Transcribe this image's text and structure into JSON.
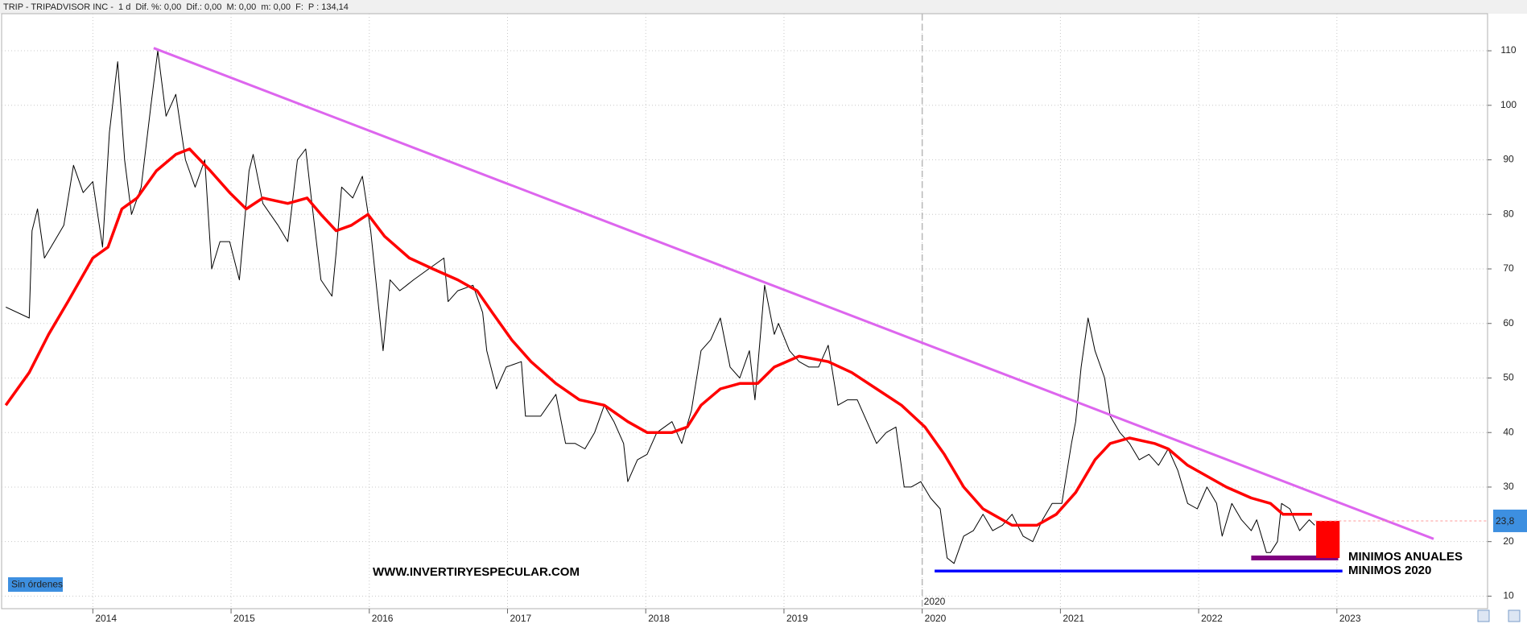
{
  "chart_data": {
    "type": "line",
    "header": [
      "TRIP - TRIPADVISOR INC -  1 d  Dif. %: 0,00  Dif.: 0,00  M: 0,00  m: 0,00  F:",
      "P : 134,14"
    ],
    "header_colors": [
      "#000000",
      "#ff0000"
    ],
    "xlim": [
      2013.34,
      2024.09
    ],
    "xticks": [
      2014,
      2015,
      2016,
      2017,
      2018,
      2019,
      2020,
      2021,
      2022,
      2023
    ],
    "ylim": [
      7.7,
      116.8
    ],
    "yticks": [
      10,
      20,
      30,
      40,
      50,
      60,
      70,
      80,
      90,
      100,
      110
    ],
    "grid": true,
    "series": [
      {
        "color": "#000000",
        "x": [
          2013.37,
          2013.54,
          2013.56,
          2013.6,
          2013.65,
          2013.72,
          2013.79,
          2013.86,
          2013.93,
          2014.0,
          2014.07,
          2014.12,
          2014.18,
          2014.23,
          2014.28,
          2014.35,
          2014.42,
          2014.47,
          2014.53,
          2014.6,
          2014.67,
          2014.74,
          2014.81,
          2014.86,
          2014.92,
          2014.99,
          2015.06,
          2015.13,
          2015.16,
          2015.23,
          2015.34,
          2015.41,
          2015.48,
          2015.54,
          2015.58,
          2015.65,
          2015.73,
          2015.76,
          2015.8,
          2015.88,
          2015.95,
          2016.01,
          2016.08,
          2016.1,
          2016.15,
          2016.22,
          2016.32,
          2016.43,
          2016.54,
          2016.57,
          2016.64,
          2016.75,
          2016.82,
          2016.85,
          2016.92,
          2016.99,
          2017.1,
          2017.13,
          2017.24,
          2017.35,
          2017.42,
          2017.49,
          2017.56,
          2017.63,
          2017.7,
          2017.77,
          2017.84,
          2017.87,
          2017.94,
          2018.01,
          2018.08,
          2018.19,
          2018.26,
          2018.33,
          2018.4,
          2018.47,
          2018.54,
          2018.61,
          2018.68,
          2018.75,
          2018.79,
          2018.86,
          2018.93,
          2018.96,
          2019.04,
          2019.11,
          2019.18,
          2019.25,
          2019.32,
          2019.39,
          2019.46,
          2019.53,
          2019.6,
          2019.67,
          2019.74,
          2019.81,
          2019.87,
          2019.92,
          2019.99,
          2020.06,
          2020.13,
          2020.18,
          2020.23,
          2020.3,
          2020.37,
          2020.44,
          2020.51,
          2020.58,
          2020.65,
          2020.73,
          2020.8,
          2020.87,
          2020.94,
          2021.01,
          2021.08,
          2021.11,
          2021.15,
          2021.2,
          2021.25,
          2021.32,
          2021.36,
          2021.43,
          2021.5,
          2021.57,
          2021.64,
          2021.71,
          2021.78,
          2021.85,
          2021.92,
          2021.99,
          2022.06,
          2022.13,
          2022.17,
          2022.24,
          2022.31,
          2022.38,
          2022.42,
          2022.49,
          2022.52,
          2022.57,
          2022.6,
          2022.66,
          2022.73,
          2022.8,
          2022.84
        ],
        "values": [
          63,
          61,
          77,
          81,
          72,
          75,
          78,
          89,
          84,
          86,
          74,
          95,
          108,
          90,
          80,
          85,
          100,
          110,
          98,
          102,
          90,
          85,
          90,
          70,
          75,
          75,
          68,
          88,
          91,
          82,
          78,
          75,
          90,
          92,
          83,
          68,
          65,
          73,
          85,
          83,
          87,
          77,
          60,
          55,
          68,
          66,
          68,
          70,
          72,
          64,
          66,
          67,
          62,
          55,
          48,
          52,
          53,
          43,
          43,
          47,
          38,
          38,
          37,
          40,
          45,
          42,
          38,
          31,
          35,
          36,
          40,
          42,
          38,
          44,
          55,
          57,
          61,
          52,
          50,
          55,
          46,
          67,
          58,
          60,
          55,
          53,
          52,
          52,
          56,
          45,
          46,
          46,
          42,
          38,
          40,
          41,
          30,
          30,
          31,
          28,
          26,
          17,
          16,
          21,
          22,
          25,
          22,
          23,
          25,
          21,
          20,
          24,
          27,
          27,
          38,
          42,
          52,
          61,
          55,
          50,
          43,
          40,
          38,
          35,
          36,
          34,
          37,
          33,
          27,
          26,
          30,
          27,
          21,
          27,
          24,
          22,
          24,
          18,
          18,
          20,
          27,
          26,
          22,
          24,
          23
        ]
      },
      {
        "color": "#ff0000",
        "x": [
          2013.37,
          2013.54,
          2013.68,
          2013.82,
          2014.0,
          2014.11,
          2014.21,
          2014.32,
          2014.46,
          2014.6,
          2014.7,
          2014.85,
          2014.99,
          2015.11,
          2015.23,
          2015.41,
          2015.55,
          2015.65,
          2015.76,
          2015.87,
          2015.99,
          2016.11,
          2016.29,
          2016.46,
          2016.64,
          2016.78,
          2016.89,
          2017.03,
          2017.17,
          2017.35,
          2017.52,
          2017.7,
          2017.87,
          2018.01,
          2018.19,
          2018.3,
          2018.4,
          2018.54,
          2018.68,
          2018.81,
          2018.93,
          2019.11,
          2019.32,
          2019.49,
          2019.67,
          2019.85,
          2020.02,
          2020.16,
          2020.3,
          2020.44,
          2020.65,
          2020.83,
          2020.97,
          2021.11,
          2021.25,
          2021.36,
          2021.5,
          2021.68,
          2021.78,
          2021.92,
          2022.06,
          2022.2,
          2022.38,
          2022.52,
          2022.61,
          2022.73,
          2022.82
        ],
        "values": [
          45,
          51,
          58,
          64,
          72,
          74,
          81,
          83,
          88,
          91,
          92,
          88,
          84,
          81,
          83,
          82,
          83,
          80,
          77,
          78,
          80,
          76,
          72,
          70,
          68,
          66,
          62,
          57,
          53,
          49,
          46,
          45,
          42,
          40,
          40,
          41,
          45,
          48,
          49,
          49,
          52,
          54,
          53,
          51,
          48,
          45,
          41,
          36,
          30,
          26,
          23,
          23,
          25,
          29,
          35,
          38,
          39,
          38,
          37,
          34,
          32,
          30,
          28,
          27,
          25,
          25,
          25
        ]
      },
      {
        "color": "#dd66ee",
        "x": [
          2014.44,
          2023.7
        ],
        "values": [
          110.5,
          20.5
        ]
      },
      {
        "color": "#0000ff",
        "x": [
          2020.09,
          2023.04
        ],
        "values": [
          14.6,
          14.6
        ]
      },
      {
        "color": "#800080",
        "x": [
          2022.38,
          2023.01
        ],
        "values": [
          17,
          17
        ]
      }
    ],
    "zones": [
      {
        "color": "#ff0000",
        "x": [
          2022.85,
          2023.02
        ],
        "y": [
          17,
          23.8
        ]
      }
    ],
    "markers": [
      {
        "x": 2020,
        "label": "2020"
      }
    ],
    "last_price": {
      "value": 23.8,
      "label": "23,8"
    },
    "annotations": [
      "WWW.INVERTIRYESPECULAR.COM",
      "MINIMOS ANUALES",
      "MINIMOS 2020"
    ],
    "status": "Sin órdenes"
  }
}
